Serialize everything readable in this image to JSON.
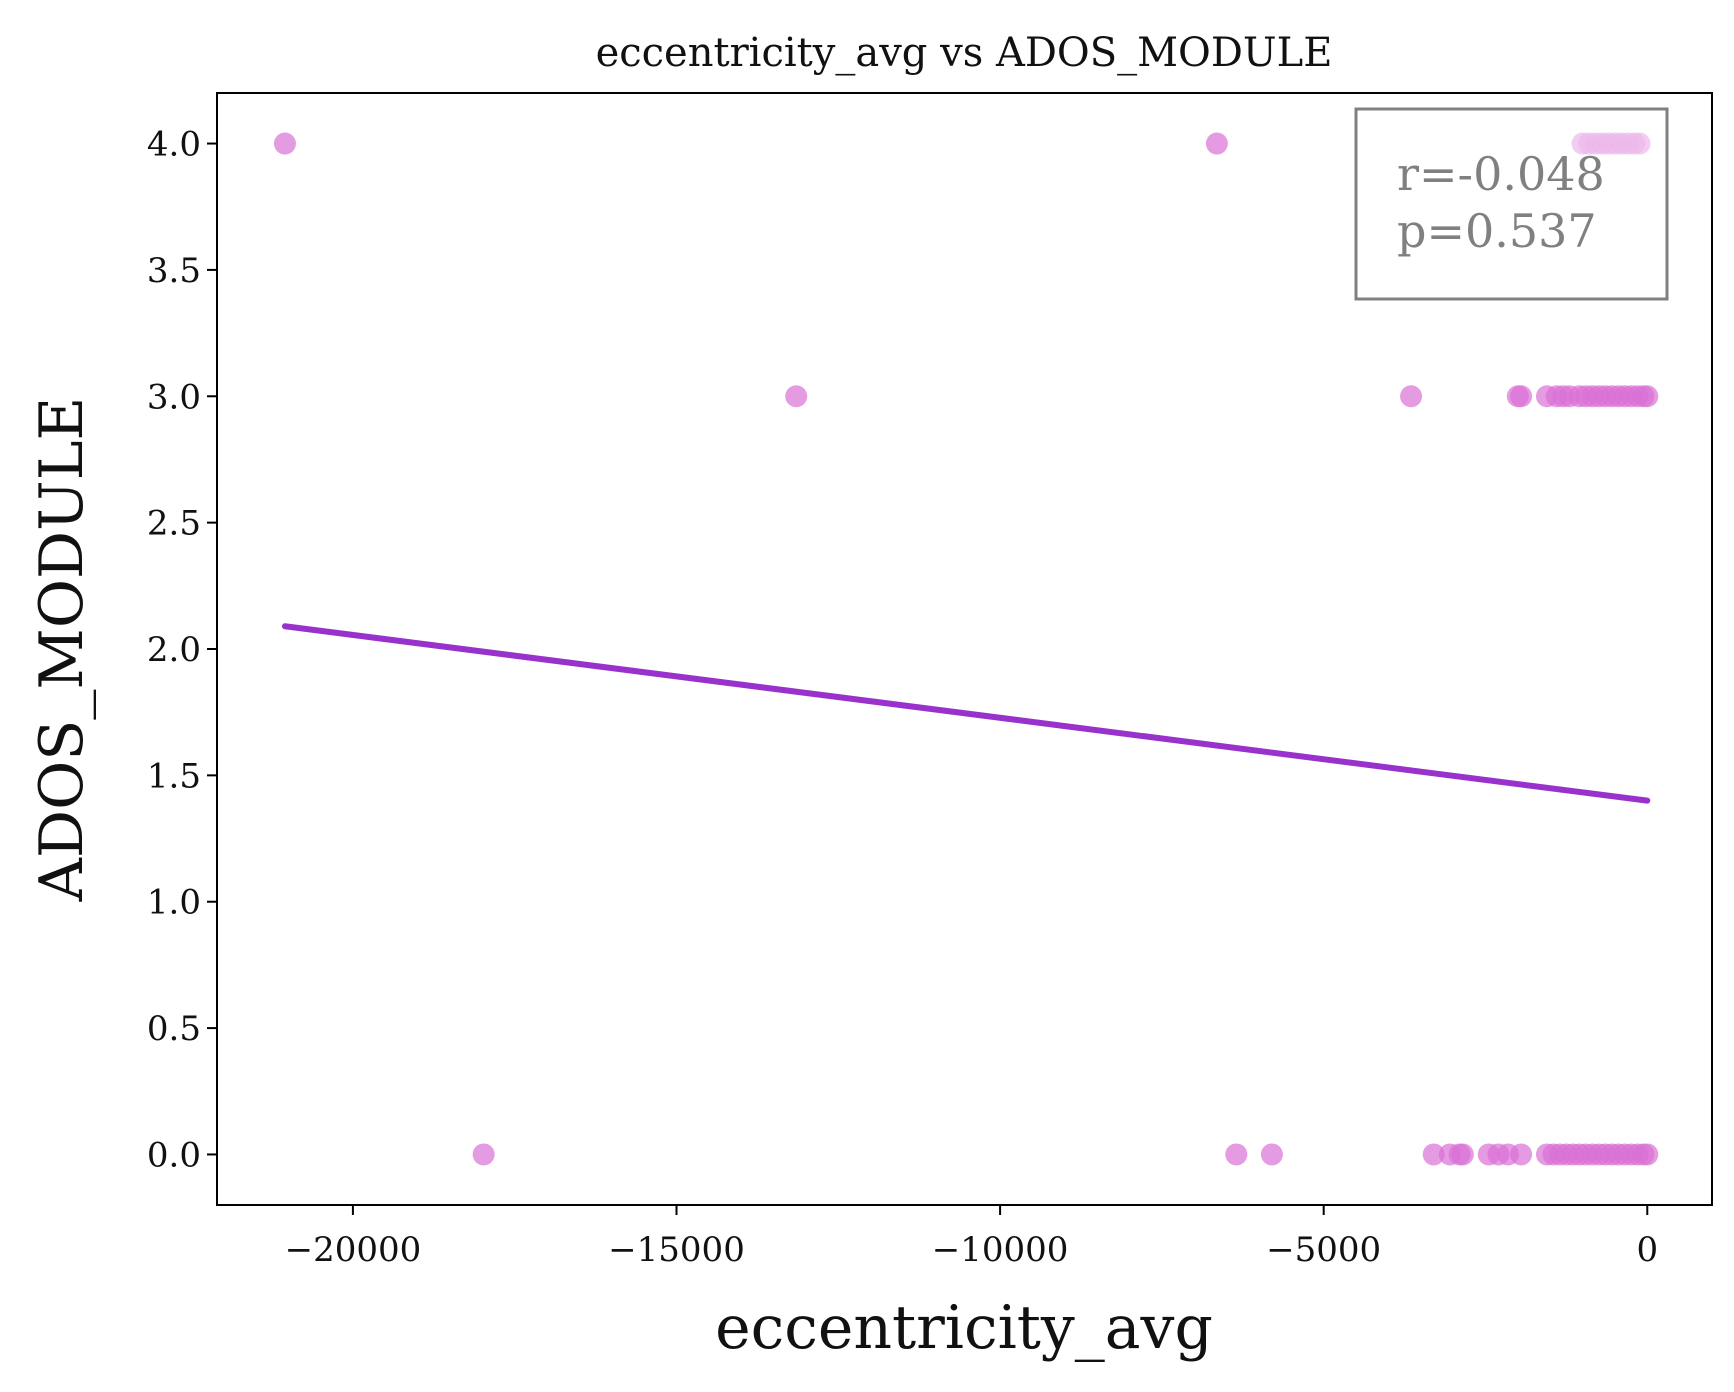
{
  "chart_data": {
    "type": "scatter",
    "title": "eccentricity_avg vs ADOS_MODULE",
    "xlabel": "eccentricity_avg",
    "ylabel": "ADOS_MODULE",
    "xlim": [
      -22100,
      1000
    ],
    "ylim": [
      -0.2,
      4.2
    ],
    "xticks": [
      -20000,
      -15000,
      -10000,
      -5000,
      0
    ],
    "xtick_labels": [
      "−20000",
      "−15000",
      "−10000",
      "−5000",
      "0"
    ],
    "yticks": [
      0.0,
      0.5,
      1.0,
      1.5,
      2.0,
      2.5,
      3.0,
      3.5,
      4.0
    ],
    "ytick_labels": [
      "0.0",
      "0.5",
      "1.0",
      "1.5",
      "2.0",
      "2.5",
      "3.0",
      "3.5",
      "4.0"
    ],
    "grid": false,
    "point_color": "#da70d6",
    "line_color": "#9932cc",
    "points": [
      {
        "x": -21050,
        "y": 4
      },
      {
        "x": -6650,
        "y": 4
      },
      {
        "x": -1000,
        "y": 4
      },
      {
        "x": -900,
        "y": 4
      },
      {
        "x": -800,
        "y": 4
      },
      {
        "x": -700,
        "y": 4
      },
      {
        "x": -600,
        "y": 4
      },
      {
        "x": -500,
        "y": 4
      },
      {
        "x": -400,
        "y": 4
      },
      {
        "x": -300,
        "y": 4
      },
      {
        "x": -200,
        "y": 4
      },
      {
        "x": -120,
        "y": 4
      },
      {
        "x": -13150,
        "y": 3
      },
      {
        "x": -3650,
        "y": 3
      },
      {
        "x": -2000,
        "y": 3
      },
      {
        "x": -1950,
        "y": 3
      },
      {
        "x": -1550,
        "y": 3
      },
      {
        "x": -1400,
        "y": 3
      },
      {
        "x": -1300,
        "y": 3
      },
      {
        "x": -1200,
        "y": 3
      },
      {
        "x": -1050,
        "y": 3
      },
      {
        "x": -950,
        "y": 3
      },
      {
        "x": -850,
        "y": 3
      },
      {
        "x": -750,
        "y": 3
      },
      {
        "x": -650,
        "y": 3
      },
      {
        "x": -550,
        "y": 3
      },
      {
        "x": -450,
        "y": 3
      },
      {
        "x": -350,
        "y": 3
      },
      {
        "x": -250,
        "y": 3
      },
      {
        "x": -150,
        "y": 3
      },
      {
        "x": -60,
        "y": 3
      },
      {
        "x": 0,
        "y": 3
      },
      {
        "x": -17980,
        "y": 0
      },
      {
        "x": -6350,
        "y": 0
      },
      {
        "x": -5800,
        "y": 0
      },
      {
        "x": -3300,
        "y": 0
      },
      {
        "x": -3050,
        "y": 0
      },
      {
        "x": -2900,
        "y": 0
      },
      {
        "x": -2850,
        "y": 0
      },
      {
        "x": -2450,
        "y": 0
      },
      {
        "x": -2300,
        "y": 0
      },
      {
        "x": -2150,
        "y": 0
      },
      {
        "x": -1950,
        "y": 0
      },
      {
        "x": -1550,
        "y": 0
      },
      {
        "x": -1450,
        "y": 0
      },
      {
        "x": -1350,
        "y": 0
      },
      {
        "x": -1250,
        "y": 0
      },
      {
        "x": -1150,
        "y": 0
      },
      {
        "x": -1050,
        "y": 0
      },
      {
        "x": -950,
        "y": 0
      },
      {
        "x": -850,
        "y": 0
      },
      {
        "x": -750,
        "y": 0
      },
      {
        "x": -650,
        "y": 0
      },
      {
        "x": -550,
        "y": 0
      },
      {
        "x": -450,
        "y": 0
      },
      {
        "x": -350,
        "y": 0
      },
      {
        "x": -250,
        "y": 0
      },
      {
        "x": -150,
        "y": 0
      },
      {
        "x": -60,
        "y": 0
      },
      {
        "x": 0,
        "y": 0
      }
    ],
    "regression_line": {
      "x": [
        -21050,
        0
      ],
      "y": [
        2.09,
        1.4
      ]
    },
    "annotation": {
      "r": "r=-0.048",
      "p": "p=0.537",
      "placement": "top-right"
    }
  }
}
